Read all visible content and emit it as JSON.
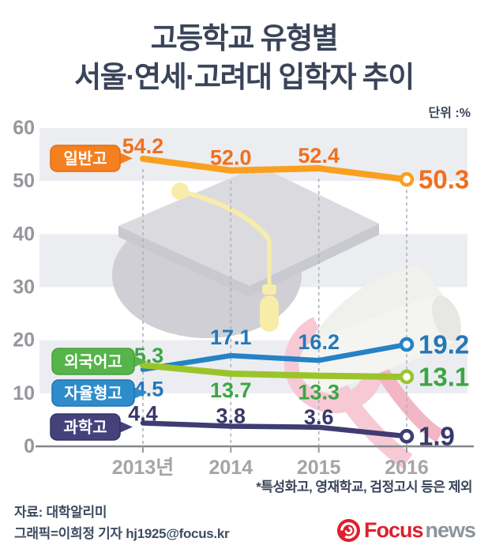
{
  "title": {
    "line1": "고등학교 유형별",
    "line2": "서울·연세·고려대 입학자 추이"
  },
  "unit_label": "단위 :%",
  "chart_data": {
    "type": "line",
    "x_labels": [
      "2013년",
      "2014",
      "2015",
      "2016"
    ],
    "ylim": [
      0,
      60
    ],
    "yticks": [
      0,
      10,
      20,
      30,
      40,
      50,
      60
    ],
    "grid": "alternating-horizontal-bands",
    "legend_position": "left-callouts",
    "series": [
      {
        "name": "일반고",
        "values": [
          54.2,
          52.0,
          52.4,
          50.3
        ],
        "labels": [
          "54.2",
          "52.0",
          "52.4",
          "50.3"
        ],
        "color": "#F9A01F",
        "value_color": "#F16F1D",
        "label_bg": "#F5801F",
        "label_border": "#E06E12"
      },
      {
        "name": "외국어고",
        "values": [
          15.3,
          13.7,
          13.3,
          13.1
        ],
        "labels": [
          "15.3",
          "13.7",
          "13.3",
          "13.1"
        ],
        "color": "#9BC42B",
        "value_color": "#3BA644",
        "label_bg": "#55B44A",
        "label_border": "#44A13C"
      },
      {
        "name": "자율형고",
        "values": [
          14.5,
          17.1,
          16.2,
          19.2
        ],
        "labels": [
          "14.5",
          "17.1",
          "16.2",
          "19.2"
        ],
        "color": "#2583C5",
        "value_color": "#2578B8",
        "label_bg": "#2E8CCB",
        "label_border": "#1F74AE"
      },
      {
        "name": "과학고",
        "values": [
          4.4,
          3.8,
          3.6,
          1.9
        ],
        "labels": [
          "4.4",
          "3.8",
          "3.6",
          "1.9"
        ],
        "color": "#3F3C72",
        "value_color": "#39386B",
        "label_bg": "#45427B",
        "label_border": "#343165"
      }
    ]
  },
  "note": "*특성화고, 영재학교, 검정고시 등은 제외",
  "footer": {
    "source": "자료: 대학알리미",
    "credit": "그래픽=이희정 기자 hj1925@focus.kr",
    "logo": {
      "brand": "Focus",
      "suffix": "news",
      "brand_color": "#DE1F2E",
      "suffix_color": "#8D959B"
    }
  }
}
